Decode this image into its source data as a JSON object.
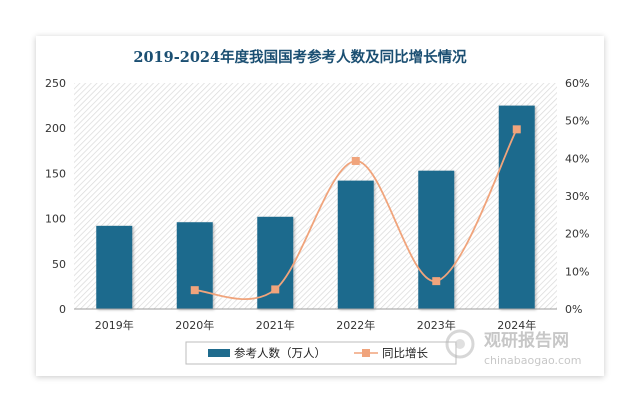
{
  "chart_data": {
    "type": "bar",
    "title": "2019-2024年度我国国考参考人数及同比增长情况",
    "categories": [
      "2019年",
      "2020年",
      "2021年",
      "2022年",
      "2023年",
      "2024年"
    ],
    "series": [
      {
        "name": "参考人数（万人）",
        "kind": "bar",
        "axis": "left",
        "color": "#1f6b8d",
        "values": [
          92,
          96,
          102,
          142,
          153,
          225
        ]
      },
      {
        "name": "同比增长",
        "kind": "line",
        "axis": "right",
        "color": "#f0a47c",
        "values": [
          null,
          5.0,
          5.2,
          39.3,
          7.4,
          47.7
        ]
      }
    ],
    "y_left": {
      "min": 0,
      "max": 250,
      "ticks": [
        "0",
        "50",
        "100",
        "150",
        "200",
        "250"
      ]
    },
    "y_right": {
      "min": 0,
      "max": 60,
      "ticks": [
        "0%",
        "10%",
        "20%",
        "30%",
        "40%",
        "50%",
        "60%"
      ]
    },
    "xlabel": "",
    "ylabel": "",
    "legend": "bottom"
  },
  "watermark": {
    "cn": "观研报告网",
    "en": "chinabaogao.com"
  }
}
